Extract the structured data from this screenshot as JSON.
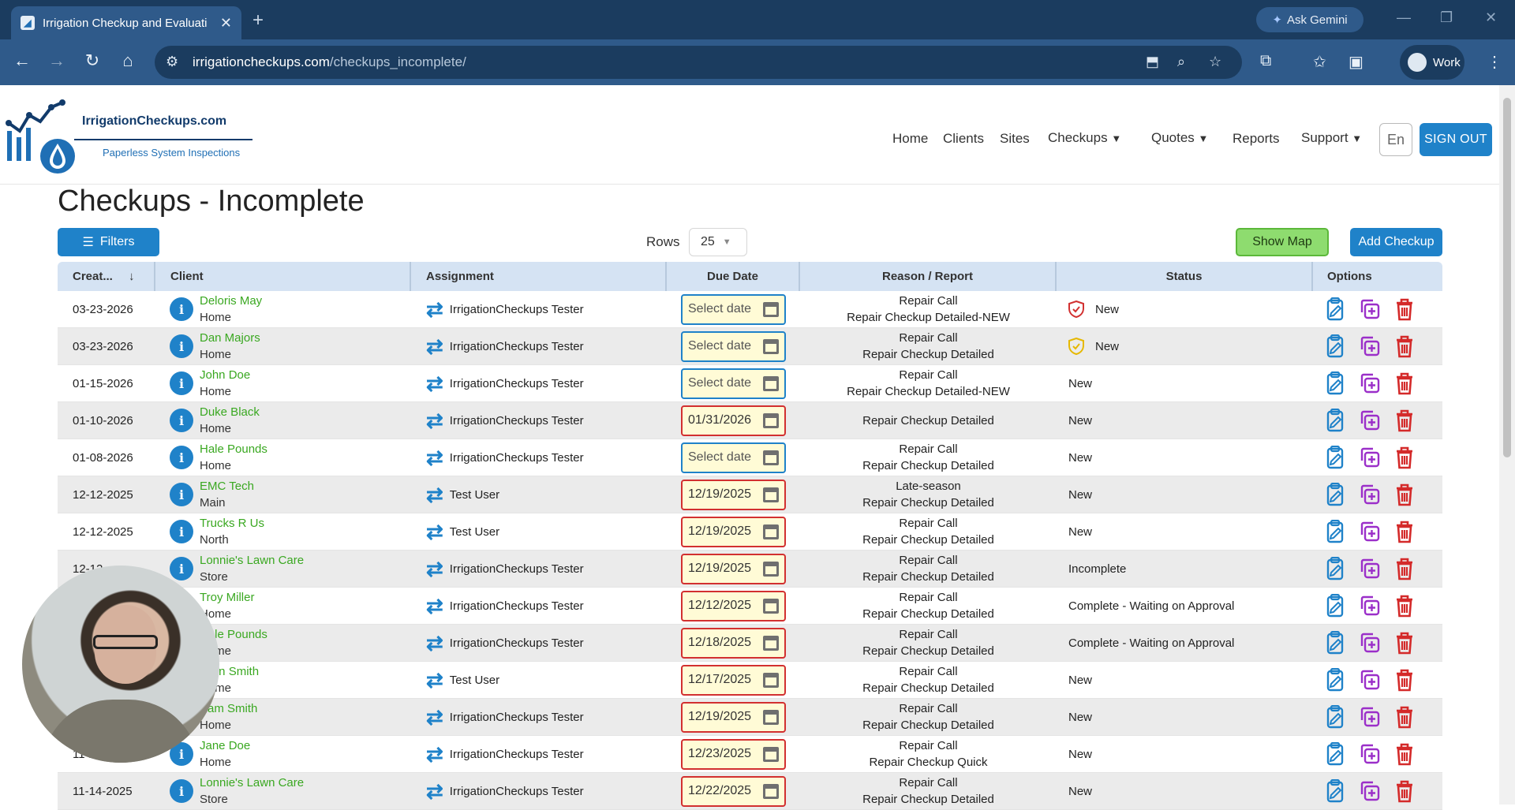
{
  "browser": {
    "tab_title": "Irrigation Checkup and Evaluati",
    "new_tab": "+",
    "ask_gemini": "Ask Gemini",
    "url_host": "irrigationcheckups.com",
    "url_path": "/checkups_incomplete/",
    "profile": "Work"
  },
  "site": {
    "logo_title": "IrrigationCheckups.com",
    "logo_subtitle": "Paperless System Inspections",
    "nav": {
      "home": "Home",
      "clients": "Clients",
      "sites": "Sites",
      "checkups": "Checkups",
      "quotes": "Quotes",
      "reports": "Reports",
      "support": "Support"
    },
    "lang": "En",
    "sign_out": "SIGN OUT"
  },
  "page": {
    "title": "Checkups - Incomplete",
    "filters": "Filters",
    "rows_label": "Rows",
    "rows_value": "25",
    "show_map": "Show Map",
    "add_checkup": "Add Checkup"
  },
  "columns": {
    "created": "Creat...",
    "client": "Client",
    "assignment": "Assignment",
    "due_date": "Due Date",
    "reason": "Reason / Report",
    "status": "Status",
    "options": "Options"
  },
  "rows": [
    {
      "created": "03-23-2026",
      "client": "Deloris May",
      "site": "Home",
      "assignment": "IrrigationCheckups Tester",
      "due": "Select date",
      "reason1": "Repair Call",
      "reason2": "Repair Checkup Detailed-NEW",
      "status": "New"
    },
    {
      "created": "03-23-2026",
      "client": "Dan Majors",
      "site": "Home",
      "assignment": "IrrigationCheckups Tester",
      "due": "Select date",
      "reason1": "Repair Call",
      "reason2": "Repair Checkup Detailed",
      "status": "New"
    },
    {
      "created": "01-15-2026",
      "client": "John Doe",
      "site": "Home",
      "assignment": "IrrigationCheckups Tester",
      "due": "Select date",
      "reason1": "Repair Call",
      "reason2": "Repair Checkup Detailed-NEW",
      "status": "New"
    },
    {
      "created": "01-10-2026",
      "client": "Duke Black",
      "site": "Home",
      "assignment": "IrrigationCheckups Tester",
      "due": "01/31/2026",
      "reason1": "",
      "reason2": "Repair Checkup Detailed",
      "status": "New"
    },
    {
      "created": "01-08-2026",
      "client": "Hale Pounds",
      "site": "Home",
      "assignment": "IrrigationCheckups Tester",
      "due": "Select date",
      "reason1": "Repair Call",
      "reason2": "Repair Checkup Detailed",
      "status": "New"
    },
    {
      "created": "12-12-2025",
      "client": "EMC Tech",
      "site": "Main",
      "assignment": "Test User",
      "due": "12/19/2025",
      "reason1": "Late-season",
      "reason2": "Repair Checkup Detailed",
      "status": "New"
    },
    {
      "created": "12-12-2025",
      "client": "Trucks R Us",
      "site": "North",
      "assignment": "Test User",
      "due": "12/19/2025",
      "reason1": "Repair Call",
      "reason2": "Repair Checkup Detailed",
      "status": "New"
    },
    {
      "created": "12-12-...",
      "client": "Lonnie's Lawn Care",
      "site": "Store",
      "assignment": "IrrigationCheckups Tester",
      "due": "12/19/2025",
      "reason1": "Repair Call",
      "reason2": "Repair Checkup Detailed",
      "status": "Incomplete"
    },
    {
      "created": "",
      "client": "Troy Miller",
      "site": "Home",
      "assignment": "IrrigationCheckups Tester",
      "due": "12/12/2025",
      "reason1": "Repair Call",
      "reason2": "Repair Checkup Detailed",
      "status": "Complete - Waiting on Approval"
    },
    {
      "created": "",
      "client": "Hale Pounds",
      "site": "Home",
      "assignment": "IrrigationCheckups Tester",
      "due": "12/18/2025",
      "reason1": "Repair Call",
      "reason2": "Repair Checkup Detailed",
      "status": "Complete - Waiting on Approval"
    },
    {
      "created": "",
      "client": "John Smith",
      "site": "Home",
      "assignment": "Test User",
      "due": "12/17/2025",
      "reason1": "Repair Call",
      "reason2": "Repair Checkup Detailed",
      "status": "New"
    },
    {
      "created": "",
      "client": "Sam Smith",
      "site": "Home",
      "assignment": "IrrigationCheckups Tester",
      "due": "12/19/2025",
      "reason1": "Repair Call",
      "reason2": "Repair Checkup Detailed",
      "status": "New"
    },
    {
      "created": "11-2...",
      "client": "Jane Doe",
      "site": "Home",
      "assignment": "IrrigationCheckups Tester",
      "due": "12/23/2025",
      "reason1": "Repair Call",
      "reason2": "Repair Checkup Quick",
      "status": "New"
    },
    {
      "created": "11-14-2025",
      "client": "Lonnie's Lawn Care",
      "site": "Store",
      "assignment": "IrrigationCheckups Tester",
      "due": "12/22/2025",
      "reason1": "Repair Call",
      "reason2": "Repair Checkup Detailed",
      "status": "New"
    }
  ],
  "status_icons": [
    "shield-red-icon",
    "shield-yellow-icon"
  ],
  "colors": {
    "primary": "#1f82c9",
    "client_link": "#3aa821",
    "date_invalid_border": "#d23030",
    "date_fill": "#fffbd6",
    "show_map": "#8edc6f",
    "delete": "#d42a2a",
    "duplicate": "#9b2fc9"
  }
}
